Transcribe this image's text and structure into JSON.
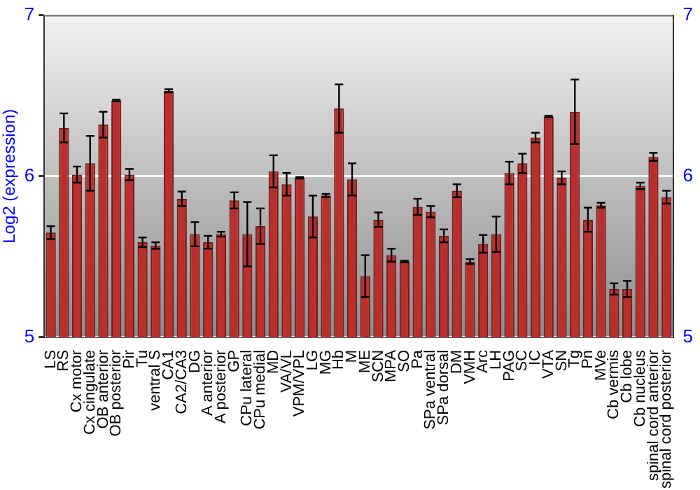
{
  "chart_data": {
    "type": "bar",
    "ylabel": "Log2 (expression)",
    "categories": [
      "LS",
      "RS",
      "Cx motor",
      "Cx cingulate",
      "OB anterior",
      "OB posterior",
      "Pir",
      "Tu",
      "ventral S",
      "CA1",
      "CA2/CA3",
      "DG",
      "A anterior",
      "A posterior",
      "GP",
      "CPu lateral",
      "CPu medial",
      "MD",
      "VA/VL",
      "VPM/VPL",
      "LG",
      "MG",
      "Hb",
      "M",
      "ME",
      "SCN",
      "MPA",
      "SO",
      "Pa",
      "SPa ventral",
      "SPa dorsal",
      "DM",
      "VMH",
      "Arc",
      "LH",
      "PAG",
      "SC",
      "IC",
      "VTA",
      "SN",
      "Tg",
      "Pn",
      "MVe",
      "Cb vermis",
      "Cb lobe",
      "Cb nucleus",
      "spinal cord anterior",
      "spinal cord posterior"
    ],
    "values": [
      5.65,
      6.3,
      6.01,
      6.08,
      6.32,
      6.47,
      6.01,
      5.59,
      5.57,
      6.53,
      5.86,
      5.64,
      5.59,
      5.64,
      5.85,
      5.64,
      5.69,
      6.03,
      5.95,
      5.99,
      5.75,
      5.88,
      6.42,
      5.98,
      5.38,
      5.73,
      5.51,
      5.47,
      5.81,
      5.78,
      5.63,
      5.91,
      5.47,
      5.58,
      5.64,
      6.02,
      6.08,
      6.24,
      6.37,
      5.99,
      6.4,
      5.73,
      5.82,
      5.3,
      5.3,
      5.94,
      6.12,
      5.87
    ],
    "errors": [
      0.04,
      0.09,
      0.05,
      0.17,
      0.08,
      0.005,
      0.035,
      0.03,
      0.02,
      0.01,
      0.045,
      0.075,
      0.04,
      0.015,
      0.05,
      0.2,
      0.11,
      0.1,
      0.07,
      0.005,
      0.13,
      0.01,
      0.15,
      0.1,
      0.13,
      0.045,
      0.04,
      0.005,
      0.05,
      0.035,
      0.04,
      0.04,
      0.015,
      0.055,
      0.11,
      0.07,
      0.06,
      0.03,
      0.005,
      0.04,
      0.2,
      0.075,
      0.015,
      0.035,
      0.05,
      0.02,
      0.025,
      0.04
    ],
    "color": "#b8302e",
    "ylim": [
      5,
      7
    ],
    "yticks": [
      5,
      6,
      7
    ],
    "y2lim": [
      5,
      7
    ],
    "y2ticks": [
      5,
      6,
      7
    ],
    "grid": "y",
    "legend": false
  }
}
